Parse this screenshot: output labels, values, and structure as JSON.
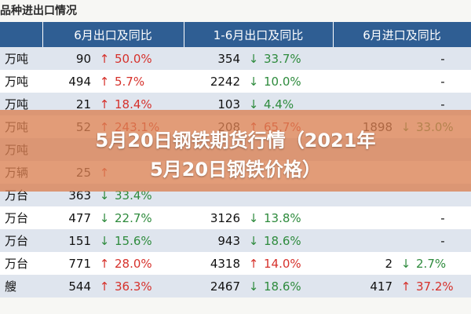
{
  "page_title": "品种进出口情况",
  "table": {
    "headers": [
      "",
      "6月出口及同比",
      "1-6月出口及同比",
      "6月进口及同比"
    ],
    "rows": [
      {
        "unit": "万吨",
        "c1_val": "90",
        "c1_arrow": "↑",
        "c1_dir": "up",
        "c1_pct": "50.0%",
        "c2_val": "354",
        "c2_arrow": "↓",
        "c2_dir": "down",
        "c2_pct": "33.7%",
        "c3_val": "",
        "c3_arrow": "",
        "c3_dir": "",
        "c3_pct": "-"
      },
      {
        "unit": "万吨",
        "c1_val": "494",
        "c1_arrow": "↑",
        "c1_dir": "up",
        "c1_pct": "5.7%",
        "c2_val": "2242",
        "c2_arrow": "↓",
        "c2_dir": "down",
        "c2_pct": "10.0%",
        "c3_val": "",
        "c3_arrow": "",
        "c3_dir": "",
        "c3_pct": "-"
      },
      {
        "unit": "万吨",
        "c1_val": "21",
        "c1_arrow": "↑",
        "c1_dir": "up",
        "c1_pct": "18.4%",
        "c2_val": "103",
        "c2_arrow": "↓",
        "c2_dir": "down",
        "c2_pct": "4.4%",
        "c3_val": "",
        "c3_arrow": "",
        "c3_dir": "",
        "c3_pct": "-"
      },
      {
        "unit": "万吨",
        "c1_val": "52",
        "c1_arrow": "↑",
        "c1_dir": "up",
        "c1_pct": "243.1%",
        "c2_val": "208",
        "c2_arrow": "↑",
        "c2_dir": "up",
        "c2_pct": "65.7%",
        "c3_val": "1898",
        "c3_arrow": "↓",
        "c3_dir": "down",
        "c3_pct": "33.0%"
      },
      {
        "unit": "万吨",
        "c1_val": "",
        "c1_arrow": "",
        "c1_dir": "",
        "c1_pct": "",
        "c2_val": "",
        "c2_arrow": "",
        "c2_dir": "",
        "c2_pct": "",
        "c3_val": "",
        "c3_arrow": "",
        "c3_dir": "",
        "c3_pct": ""
      },
      {
        "unit": "万辆",
        "c1_val": "25",
        "c1_arrow": "↑",
        "c1_dir": "up",
        "c1_pct": "",
        "c2_val": "",
        "c2_arrow": "",
        "c2_dir": "",
        "c2_pct": "",
        "c3_val": "",
        "c3_arrow": "",
        "c3_dir": "",
        "c3_pct": ""
      },
      {
        "unit": "万台",
        "c1_val": "363",
        "c1_arrow": "↓",
        "c1_dir": "down",
        "c1_pct": "33.4%",
        "c2_val": "",
        "c2_arrow": "",
        "c2_dir": "",
        "c2_pct": "",
        "c3_val": "",
        "c3_arrow": "",
        "c3_dir": "",
        "c3_pct": ""
      },
      {
        "unit": "万台",
        "c1_val": "477",
        "c1_arrow": "↓",
        "c1_dir": "down",
        "c1_pct": "22.7%",
        "c2_val": "3126",
        "c2_arrow": "↓",
        "c2_dir": "down",
        "c2_pct": "13.8%",
        "c3_val": "",
        "c3_arrow": "",
        "c3_dir": "",
        "c3_pct": "-"
      },
      {
        "unit": "万台",
        "c1_val": "151",
        "c1_arrow": "↓",
        "c1_dir": "down",
        "c1_pct": "15.6%",
        "c2_val": "943",
        "c2_arrow": "↓",
        "c2_dir": "down",
        "c2_pct": "18.6%",
        "c3_val": "",
        "c3_arrow": "",
        "c3_dir": "",
        "c3_pct": "-"
      },
      {
        "unit": "万台",
        "c1_val": "771",
        "c1_arrow": "↑",
        "c1_dir": "up",
        "c1_pct": "28.0%",
        "c2_val": "4318",
        "c2_arrow": "↑",
        "c2_dir": "up",
        "c2_pct": "14.0%",
        "c3_val": "2",
        "c3_arrow": "↓",
        "c3_dir": "down",
        "c3_pct": "2.7%"
      },
      {
        "unit": "艘",
        "c1_val": "544",
        "c1_arrow": "↑",
        "c1_dir": "up",
        "c1_pct": "36.3%",
        "c2_val": "2467",
        "c2_arrow": "↓",
        "c2_dir": "down",
        "c2_pct": "18.6%",
        "c3_val": "417",
        "c3_arrow": "↑",
        "c3_dir": "up",
        "c3_pct": "37.2%"
      }
    ]
  },
  "banner": {
    "line1": "5月20日钢铁期货行情（2021年",
    "line2": "5月20日钢铁价格）"
  },
  "colors": {
    "header_bg": "#2f5e93",
    "row_alt": "#dfe5ee",
    "up": "#d6312b",
    "down": "#2e8b3d",
    "banner": "#da8052"
  }
}
